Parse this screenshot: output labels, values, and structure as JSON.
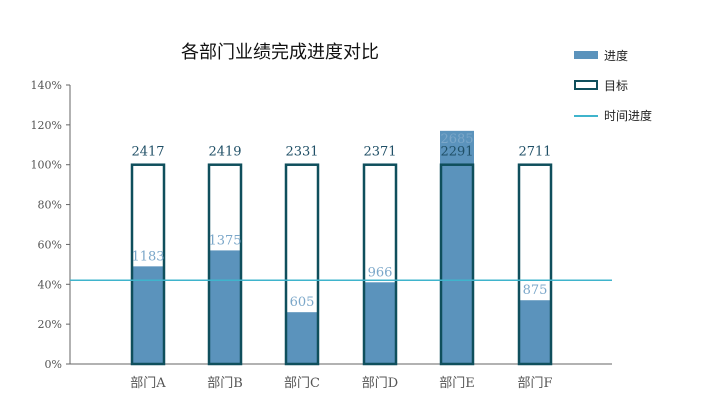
{
  "chart_data": {
    "type": "bar",
    "title": "各部门业绩完成进度对比",
    "categories": [
      "部门A",
      "部门B",
      "部门C",
      "部门D",
      "部门E",
      "部门F"
    ],
    "y_ticks": [
      "0%",
      "20%",
      "40%",
      "60%",
      "80%",
      "100%",
      "120%",
      "140%"
    ],
    "ylim": [
      0,
      1.4
    ],
    "series": [
      {
        "name": "进度",
        "values": [
          0.49,
          0.57,
          0.26,
          0.41,
          1.17,
          0.32
        ],
        "labels": [
          "1183",
          "1375",
          "605",
          "966",
          "2685",
          "875"
        ],
        "color": "#5b93bc"
      },
      {
        "name": "目标",
        "values": [
          1.0,
          1.0,
          1.0,
          1.0,
          1.0,
          1.0
        ],
        "labels": [
          "2417",
          "2419",
          "2331",
          "2371",
          "2291",
          "2711"
        ],
        "color": "#0f4f5c"
      },
      {
        "name": "时间进度",
        "type": "line",
        "value": 0.42,
        "color": "#3fb4cc"
      }
    ],
    "legend_position": "right"
  }
}
